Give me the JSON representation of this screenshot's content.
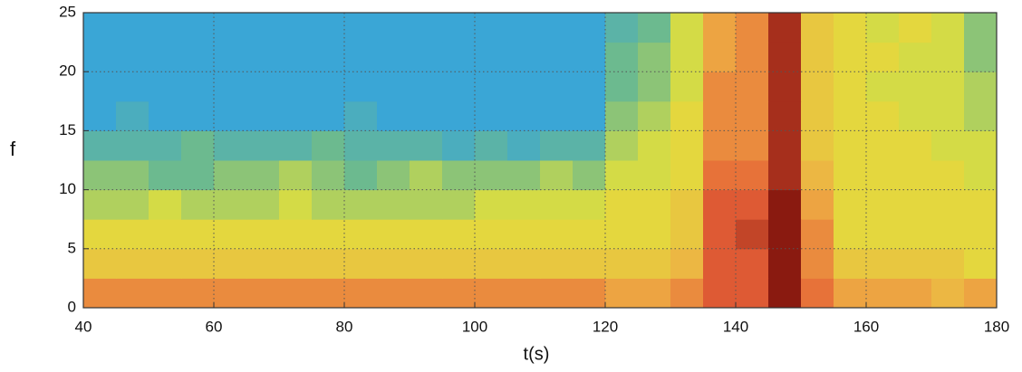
{
  "chart_data": {
    "type": "heatmap",
    "xlabel": "t(s)",
    "ylabel": "f",
    "xbins": [
      40,
      45,
      50,
      55,
      60,
      65,
      70,
      75,
      80,
      85,
      90,
      95,
      100,
      105,
      110,
      115,
      120,
      125,
      130,
      135,
      140,
      145,
      150,
      155,
      160,
      165,
      170,
      175,
      180
    ],
    "ybins": [
      0,
      2.5,
      5,
      7.5,
      10,
      12.5,
      15,
      17.5,
      20,
      22.5,
      25
    ],
    "z": [
      [
        0.75,
        0.75,
        0.75,
        0.75,
        0.75,
        0.75,
        0.75,
        0.75,
        0.75,
        0.75,
        0.75,
        0.75,
        0.75,
        0.75,
        0.75,
        0.75,
        0.7,
        0.7,
        0.75,
        0.85,
        0.85,
        1.0,
        0.8,
        0.7,
        0.7,
        0.7,
        0.65,
        0.7
      ],
      [
        0.6,
        0.6,
        0.6,
        0.6,
        0.6,
        0.6,
        0.6,
        0.6,
        0.6,
        0.6,
        0.6,
        0.6,
        0.6,
        0.6,
        0.6,
        0.6,
        0.6,
        0.6,
        0.65,
        0.85,
        0.85,
        1.0,
        0.75,
        0.6,
        0.6,
        0.6,
        0.6,
        0.55
      ],
      [
        0.55,
        0.55,
        0.55,
        0.55,
        0.55,
        0.55,
        0.55,
        0.55,
        0.55,
        0.55,
        0.55,
        0.55,
        0.55,
        0.55,
        0.55,
        0.55,
        0.55,
        0.55,
        0.6,
        0.85,
        0.9,
        1.0,
        0.75,
        0.55,
        0.55,
        0.55,
        0.55,
        0.55
      ],
      [
        0.45,
        0.45,
        0.5,
        0.45,
        0.45,
        0.45,
        0.5,
        0.45,
        0.45,
        0.45,
        0.45,
        0.45,
        0.5,
        0.5,
        0.5,
        0.5,
        0.55,
        0.55,
        0.6,
        0.85,
        0.85,
        1.0,
        0.7,
        0.55,
        0.55,
        0.55,
        0.55,
        0.55
      ],
      [
        0.4,
        0.4,
        0.35,
        0.35,
        0.4,
        0.4,
        0.45,
        0.4,
        0.35,
        0.4,
        0.45,
        0.4,
        0.4,
        0.4,
        0.45,
        0.4,
        0.5,
        0.5,
        0.55,
        0.8,
        0.8,
        0.95,
        0.65,
        0.55,
        0.55,
        0.55,
        0.55,
        0.5
      ],
      [
        0.3,
        0.3,
        0.3,
        0.35,
        0.3,
        0.3,
        0.3,
        0.35,
        0.3,
        0.3,
        0.3,
        0.25,
        0.3,
        0.25,
        0.3,
        0.3,
        0.45,
        0.5,
        0.55,
        0.75,
        0.75,
        0.95,
        0.6,
        0.55,
        0.55,
        0.55,
        0.5,
        0.5
      ],
      [
        0.2,
        0.25,
        0.2,
        0.2,
        0.2,
        0.2,
        0.2,
        0.2,
        0.25,
        0.2,
        0.2,
        0.2,
        0.2,
        0.2,
        0.2,
        0.2,
        0.4,
        0.45,
        0.55,
        0.75,
        0.75,
        0.95,
        0.6,
        0.55,
        0.55,
        0.5,
        0.5,
        0.45
      ],
      [
        0.2,
        0.2,
        0.2,
        0.2,
        0.2,
        0.2,
        0.2,
        0.2,
        0.2,
        0.2,
        0.2,
        0.2,
        0.2,
        0.2,
        0.2,
        0.2,
        0.35,
        0.4,
        0.5,
        0.75,
        0.75,
        0.95,
        0.6,
        0.55,
        0.5,
        0.5,
        0.5,
        0.45
      ],
      [
        0.2,
        0.2,
        0.2,
        0.2,
        0.2,
        0.2,
        0.2,
        0.2,
        0.2,
        0.2,
        0.2,
        0.2,
        0.2,
        0.2,
        0.2,
        0.2,
        0.35,
        0.4,
        0.5,
        0.7,
        0.75,
        0.95,
        0.6,
        0.55,
        0.55,
        0.5,
        0.5,
        0.4
      ],
      [
        0.2,
        0.2,
        0.2,
        0.2,
        0.2,
        0.2,
        0.2,
        0.2,
        0.2,
        0.2,
        0.2,
        0.2,
        0.2,
        0.2,
        0.2,
        0.2,
        0.3,
        0.35,
        0.5,
        0.7,
        0.75,
        0.95,
        0.6,
        0.55,
        0.5,
        0.55,
        0.5,
        0.4
      ]
    ],
    "zlim": [
      0.2,
      1.0
    ],
    "colors": [
      "#3aa6d6",
      "#6fbb8a",
      "#e2e03c",
      "#eeae44",
      "#e45e36",
      "#8a1a10"
    ],
    "xlim": [
      40,
      180
    ],
    "ylim": [
      0,
      25
    ],
    "xticks": [
      40,
      60,
      80,
      100,
      120,
      140,
      160,
      180
    ],
    "yticks": [
      0,
      5,
      10,
      15,
      20,
      25
    ],
    "grid": true
  }
}
